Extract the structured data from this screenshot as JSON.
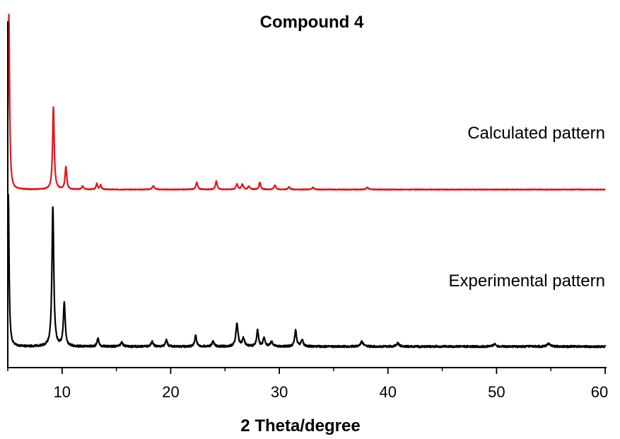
{
  "chart_data": {
    "type": "line",
    "title": "Compound 4",
    "xlabel": "2 Theta/degree",
    "ylabel": "",
    "xlim": [
      5,
      60
    ],
    "xticks": [
      10,
      20,
      30,
      40,
      50,
      60
    ],
    "y_axis_ticks_shown": false,
    "grid": false,
    "series": [
      {
        "name": "Calculated pattern",
        "color": "#e8141b",
        "baseline": 0.06,
        "peaks": [
          {
            "x": 5.1,
            "h": 1.0,
            "w": 0.08
          },
          {
            "x": 9.2,
            "h": 0.47,
            "w": 0.09
          },
          {
            "x": 10.35,
            "h": 0.13,
            "w": 0.09
          },
          {
            "x": 11.9,
            "h": 0.02,
            "w": 0.1
          },
          {
            "x": 13.2,
            "h": 0.035,
            "w": 0.08
          },
          {
            "x": 13.55,
            "h": 0.025,
            "w": 0.08
          },
          {
            "x": 18.4,
            "h": 0.02,
            "w": 0.12
          },
          {
            "x": 22.4,
            "h": 0.04,
            "w": 0.1
          },
          {
            "x": 24.2,
            "h": 0.05,
            "w": 0.09
          },
          {
            "x": 26.1,
            "h": 0.03,
            "w": 0.1
          },
          {
            "x": 26.6,
            "h": 0.03,
            "w": 0.1
          },
          {
            "x": 27.2,
            "h": 0.02,
            "w": 0.1
          },
          {
            "x": 28.2,
            "h": 0.04,
            "w": 0.09
          },
          {
            "x": 29.6,
            "h": 0.025,
            "w": 0.1
          },
          {
            "x": 30.9,
            "h": 0.015,
            "w": 0.1
          },
          {
            "x": 33.1,
            "h": 0.012,
            "w": 0.1
          },
          {
            "x": 38.1,
            "h": 0.012,
            "w": 0.12
          }
        ]
      },
      {
        "name": "Experimental pattern",
        "color": "#000000",
        "baseline": 0.06,
        "peaks": [
          {
            "x": 5.05,
            "h": 0.95,
            "w": 0.08
          },
          {
            "x": 9.15,
            "h": 0.86,
            "w": 0.1
          },
          {
            "x": 10.2,
            "h": 0.27,
            "w": 0.1
          },
          {
            "x": 13.3,
            "h": 0.05,
            "w": 0.1
          },
          {
            "x": 15.5,
            "h": 0.025,
            "w": 0.12
          },
          {
            "x": 18.3,
            "h": 0.03,
            "w": 0.12
          },
          {
            "x": 19.6,
            "h": 0.04,
            "w": 0.1
          },
          {
            "x": 22.3,
            "h": 0.07,
            "w": 0.1
          },
          {
            "x": 23.9,
            "h": 0.03,
            "w": 0.12
          },
          {
            "x": 26.1,
            "h": 0.14,
            "w": 0.12
          },
          {
            "x": 26.7,
            "h": 0.05,
            "w": 0.12
          },
          {
            "x": 28.0,
            "h": 0.1,
            "w": 0.1
          },
          {
            "x": 28.6,
            "h": 0.05,
            "w": 0.12
          },
          {
            "x": 29.3,
            "h": 0.03,
            "w": 0.12
          },
          {
            "x": 31.5,
            "h": 0.1,
            "w": 0.1
          },
          {
            "x": 32.1,
            "h": 0.04,
            "w": 0.12
          },
          {
            "x": 37.6,
            "h": 0.03,
            "w": 0.15
          },
          {
            "x": 40.9,
            "h": 0.02,
            "w": 0.15
          },
          {
            "x": 49.8,
            "h": 0.015,
            "w": 0.15
          },
          {
            "x": 54.8,
            "h": 0.02,
            "w": 0.15
          }
        ]
      }
    ],
    "legend": "inline-right"
  }
}
